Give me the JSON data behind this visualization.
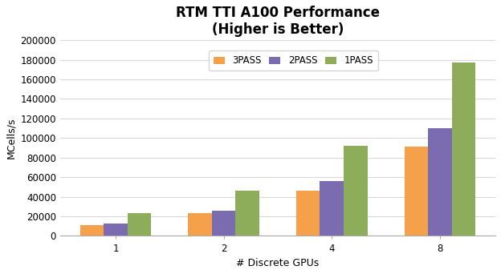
{
  "title": "RTM TTI A100 Performance\n(Higher is Better)",
  "xlabel": "# Discrete GPUs",
  "ylabel": "MCells/s",
  "gpus": [
    1,
    2,
    4,
    8
  ],
  "series": {
    "3PASS": [
      11000,
      23000,
      46000,
      91000
    ],
    "2PASS": [
      13000,
      26000,
      56000,
      110000
    ],
    "1PASS": [
      23500,
      46500,
      92000,
      177000
    ]
  },
  "colors": {
    "3PASS": "#F5A04A",
    "2PASS": "#7B6BB0",
    "1PASS": "#8EAD5B"
  },
  "ylim": [
    0,
    200000
  ],
  "yticks": [
    0,
    20000,
    40000,
    60000,
    80000,
    100000,
    120000,
    140000,
    160000,
    180000,
    200000
  ],
  "background_color": "#FFFFFF",
  "plot_bg_color": "#FFFFFF",
  "grid_color": "#D8D8D8",
  "bar_width": 0.22,
  "title_fontsize": 12,
  "axis_label_fontsize": 9,
  "tick_fontsize": 8.5,
  "legend_fontsize": 8.5
}
